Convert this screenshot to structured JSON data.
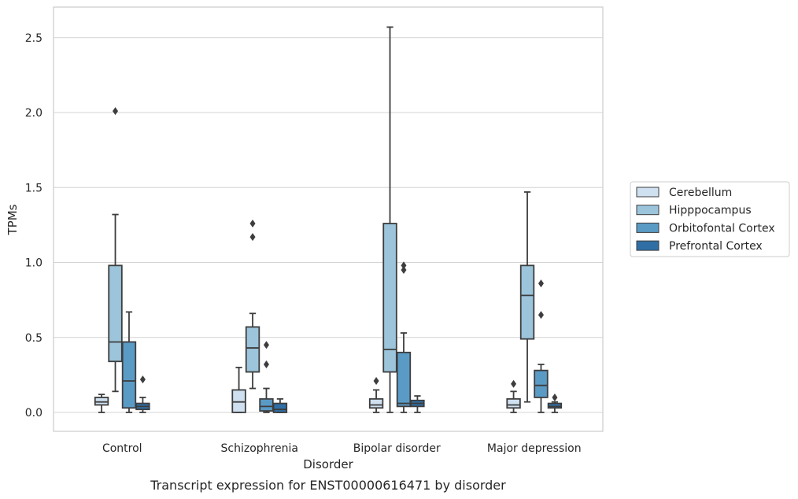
{
  "chart_data": {
    "type": "box",
    "title": "",
    "caption": "Transcript expression for ENST00000616471 by disorder",
    "xlabel": "Disorder",
    "ylabel": "TPMs",
    "ylim": [
      -0.12,
      2.7
    ],
    "yticks": [
      0.0,
      0.5,
      1.0,
      1.5,
      2.0,
      2.5
    ],
    "ytick_labels": [
      "0.0",
      "0.5",
      "1.0",
      "1.5",
      "2.0",
      "2.5"
    ],
    "grid": "horizontal",
    "legend_position": "right",
    "categories": [
      "Control",
      "Schizophrenia",
      "Bipolar disorder",
      "Major depression"
    ],
    "series": [
      {
        "name": "Cerebellum",
        "color": "#cfe0f0",
        "boxes": [
          {
            "whisker_low": 0.0,
            "q1": 0.05,
            "median": 0.07,
            "q3": 0.1,
            "whisker_high": 0.12,
            "outliers": []
          },
          {
            "whisker_low": 0.0,
            "q1": 0.0,
            "median": 0.07,
            "q3": 0.15,
            "whisker_high": 0.3,
            "outliers": []
          },
          {
            "whisker_low": 0.0,
            "q1": 0.03,
            "median": 0.05,
            "q3": 0.09,
            "whisker_high": 0.15,
            "outliers": [
              0.21
            ]
          },
          {
            "whisker_low": 0.0,
            "q1": 0.03,
            "median": 0.05,
            "q3": 0.09,
            "whisker_high": 0.14,
            "outliers": [
              0.19
            ]
          }
        ]
      },
      {
        "name": "Hipppocampus",
        "color": "#9cc4da",
        "boxes": [
          {
            "whisker_low": 0.14,
            "q1": 0.34,
            "median": 0.47,
            "q3": 0.98,
            "whisker_high": 1.32,
            "outliers": [
              2.01
            ]
          },
          {
            "whisker_low": 0.16,
            "q1": 0.27,
            "median": 0.43,
            "q3": 0.57,
            "whisker_high": 0.66,
            "outliers": [
              1.17,
              1.26
            ]
          },
          {
            "whisker_low": 0.0,
            "q1": 0.27,
            "median": 0.42,
            "q3": 1.26,
            "whisker_high": 2.57,
            "outliers": []
          },
          {
            "whisker_low": 0.07,
            "q1": 0.49,
            "median": 0.78,
            "q3": 0.98,
            "whisker_high": 1.47,
            "outliers": []
          }
        ]
      },
      {
        "name": "Orbitofontal Cortex",
        "color": "#5a9bc6",
        "boxes": [
          {
            "whisker_low": 0.0,
            "q1": 0.03,
            "median": 0.21,
            "q3": 0.47,
            "whisker_high": 0.67,
            "outliers": []
          },
          {
            "whisker_low": 0.0,
            "q1": 0.01,
            "median": 0.04,
            "q3": 0.09,
            "whisker_high": 0.16,
            "outliers": [
              0.32,
              0.45
            ]
          },
          {
            "whisker_low": 0.0,
            "q1": 0.04,
            "median": 0.06,
            "q3": 0.4,
            "whisker_high": 0.53,
            "outliers": [
              0.95,
              0.98
            ]
          },
          {
            "whisker_low": 0.0,
            "q1": 0.1,
            "median": 0.18,
            "q3": 0.28,
            "whisker_high": 0.32,
            "outliers": [
              0.65,
              0.86
            ]
          }
        ]
      },
      {
        "name": "Prefrontal Cortex",
        "color": "#2f6fa6",
        "boxes": [
          {
            "whisker_low": 0.0,
            "q1": 0.02,
            "median": 0.04,
            "q3": 0.06,
            "whisker_high": 0.1,
            "outliers": [
              0.22
            ]
          },
          {
            "whisker_low": 0.0,
            "q1": 0.0,
            "median": 0.02,
            "q3": 0.06,
            "whisker_high": 0.09,
            "outliers": []
          },
          {
            "whisker_low": 0.0,
            "q1": 0.04,
            "median": 0.06,
            "q3": 0.08,
            "whisker_high": 0.11,
            "outliers": []
          },
          {
            "whisker_low": 0.0,
            "q1": 0.03,
            "median": 0.04,
            "q3": 0.06,
            "whisker_high": 0.07,
            "outliers": [
              0.1
            ]
          }
        ]
      }
    ]
  }
}
